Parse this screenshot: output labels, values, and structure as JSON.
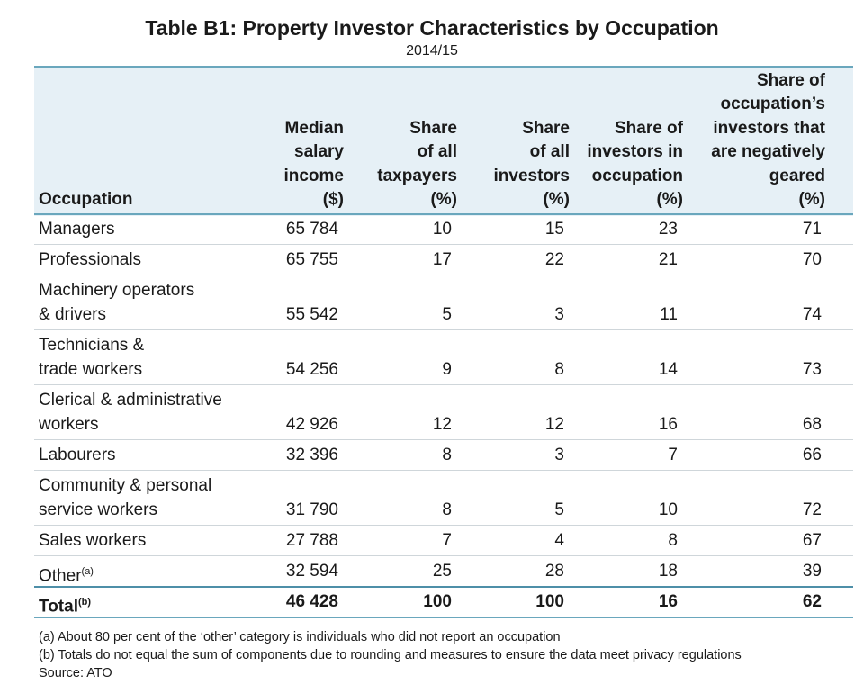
{
  "header": {
    "title": "Table B1: Property Investor Characteristics by Occupation",
    "subtitle": "2014/15"
  },
  "table": {
    "columns": [
      [
        "Occupation"
      ],
      [
        "Median",
        "salary",
        "income",
        "($)"
      ],
      [
        "Share",
        "of all",
        "taxpayers",
        "(%)"
      ],
      [
        "Share",
        "of all",
        "investors",
        "(%)"
      ],
      [
        "Share of",
        "investors in",
        "occupation",
        "(%)"
      ],
      [
        "Share of",
        "occupation’s",
        "investors that",
        "are negatively",
        "geared",
        "(%)"
      ]
    ],
    "rows": [
      {
        "label": [
          "Managers"
        ],
        "cells": [
          "65 784",
          "10",
          "15",
          "23",
          "71"
        ]
      },
      {
        "label": [
          "Professionals"
        ],
        "cells": [
          "65 755",
          "17",
          "22",
          "21",
          "70"
        ]
      },
      {
        "label": [
          "Machinery operators",
          "& drivers"
        ],
        "cells": [
          "55 542",
          "5",
          "3",
          "11",
          "74"
        ]
      },
      {
        "label": [
          "Technicians &",
          "trade workers"
        ],
        "cells": [
          "54 256",
          "9",
          "8",
          "14",
          "73"
        ]
      },
      {
        "label": [
          "Clerical & administrative",
          "workers"
        ],
        "cells": [
          "42 926",
          "12",
          "12",
          "16",
          "68"
        ]
      },
      {
        "label": [
          "Labourers"
        ],
        "cells": [
          "32 396",
          "8",
          "3",
          "7",
          "66"
        ]
      },
      {
        "label": [
          "Community & personal",
          "service workers"
        ],
        "cells": [
          "31 790",
          "8",
          "5",
          "10",
          "72"
        ]
      },
      {
        "label": [
          "Sales workers"
        ],
        "cells": [
          "27 788",
          "7",
          "4",
          "8",
          "67"
        ]
      },
      {
        "label": [
          "Other"
        ],
        "note": "(a)",
        "cells": [
          "32 594",
          "25",
          "28",
          "18",
          "39"
        ]
      }
    ],
    "total": {
      "label": [
        "Total"
      ],
      "note": "(b)",
      "cells": [
        "46 428",
        "100",
        "100",
        "16",
        "62"
      ]
    }
  },
  "footnotes": [
    "(a) About 80 per cent of the ‘other’ category is individuals who did not report an occupation",
    "(b) Totals do not equal the sum of components due to rounding and measures to ensure the data meet privacy regulations",
    "Source: ATO"
  ]
}
